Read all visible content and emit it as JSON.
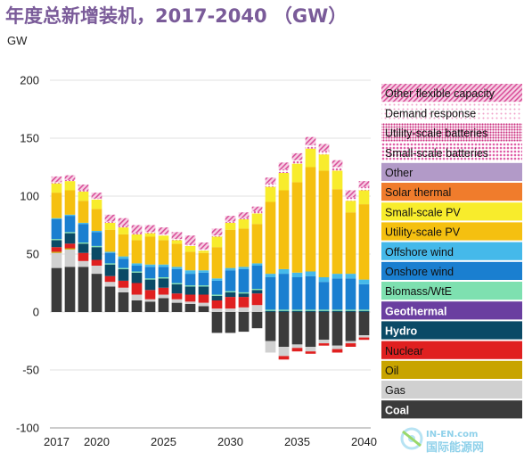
{
  "title": "年度总新增装机，2017-2040 （GW）",
  "watermark": {
    "text": "国际能源网",
    "domain": "IN-EN.com"
  },
  "chart_data": {
    "type": "bar",
    "stacked": true,
    "ylabel": "GW",
    "ylim": [
      -100,
      200
    ],
    "yticks": [
      -100,
      -50,
      0,
      50,
      100,
      150,
      200
    ],
    "x": [
      2017,
      2018,
      2019,
      2020,
      2021,
      2022,
      2023,
      2024,
      2025,
      2026,
      2027,
      2028,
      2029,
      2030,
      2031,
      2032,
      2033,
      2034,
      2035,
      2036,
      2037,
      2038,
      2039,
      2040
    ],
    "xtick_labels": [
      "2017",
      "2020",
      "2025",
      "2030",
      "2035",
      "2040"
    ],
    "grid": true,
    "legend_position": "right",
    "series": [
      {
        "name": "Coal",
        "color": "#3b3b3b",
        "values": [
          38,
          39,
          39,
          33,
          22,
          17,
          10,
          9,
          12,
          8,
          7,
          5,
          -18,
          -18,
          -17,
          -14,
          -25,
          -30,
          -28,
          -30,
          -24,
          -29,
          -25,
          -20
        ]
      },
      {
        "name": "Gas",
        "color": "#d0d0d0",
        "values": [
          13,
          15,
          5,
          7,
          4,
          4,
          5,
          2,
          3,
          3,
          2,
          3,
          3,
          3,
          4,
          6,
          -10,
          -8,
          -3,
          -4,
          -3,
          -3,
          -2,
          -2
        ]
      },
      {
        "name": "Oil",
        "color": "#c8a400",
        "values": [
          1,
          1,
          0,
          0,
          0,
          0,
          0,
          0,
          0,
          0,
          0,
          0,
          0,
          0,
          0,
          0,
          0,
          0,
          0,
          0,
          0,
          0,
          0,
          0
        ]
      },
      {
        "name": "Nuclear",
        "color": "#e02020",
        "values": [
          4,
          4,
          7,
          5,
          5,
          6,
          10,
          8,
          6,
          5,
          6,
          7,
          7,
          10,
          9,
          10,
          0,
          -3,
          -3,
          -2,
          -2,
          -3,
          -3,
          -2
        ]
      },
      {
        "name": "Hydro",
        "color": "#0b4a66",
        "values": [
          6,
          9,
          8,
          11,
          10,
          10,
          9,
          9,
          8,
          8,
          7,
          7,
          4,
          4,
          3,
          3,
          1,
          1,
          1,
          1,
          1,
          1,
          1,
          1
        ]
      },
      {
        "name": "Geothermal",
        "color": "#6a3fa0",
        "values": [
          0,
          0,
          0,
          0,
          0,
          0,
          0,
          0,
          0,
          0,
          0,
          0,
          0,
          0,
          0,
          0,
          0,
          0,
          0,
          0,
          0,
          0,
          0,
          0
        ]
      },
      {
        "name": "Biomass/WtE",
        "color": "#7ee0b0",
        "values": [
          1,
          1,
          1,
          1,
          1,
          1,
          1,
          1,
          1,
          1,
          1,
          1,
          1,
          1,
          1,
          1,
          1,
          1,
          1,
          1,
          1,
          1,
          1,
          1
        ]
      },
      {
        "name": "Onshore wind",
        "color": "#1a7fd0",
        "values": [
          17,
          14,
          16,
          12,
          9,
          8,
          5,
          10,
          9,
          12,
          10,
          11,
          12,
          18,
          20,
          20,
          28,
          31,
          28,
          29,
          24,
          27,
          27,
          22
        ]
      },
      {
        "name": "Offshore wind",
        "color": "#45b9ea",
        "values": [
          1,
          1,
          1,
          1,
          1,
          2,
          2,
          2,
          2,
          2,
          3,
          2,
          2,
          2,
          2,
          2,
          3,
          4,
          4,
          4,
          4,
          4,
          4,
          4
        ]
      },
      {
        "name": "Utility-scale PV",
        "color": "#f5c010",
        "values": [
          22,
          21,
          19,
          19,
          19,
          19,
          20,
          24,
          21,
          20,
          16,
          15,
          27,
          33,
          33,
          34,
          62,
          68,
          78,
          90,
          92,
          73,
          53,
          65
        ]
      },
      {
        "name": "Small-scale PV",
        "color": "#f8ec2c",
        "values": [
          8,
          8,
          8,
          8,
          6,
          6,
          5,
          3,
          4,
          3,
          5,
          2,
          9,
          6,
          8,
          9,
          13,
          15,
          16,
          16,
          14,
          16,
          10,
          12
        ]
      },
      {
        "name": "Solar thermal",
        "color": "#f07c2c",
        "values": [
          0,
          0,
          0,
          0,
          0,
          0,
          0,
          0,
          0,
          0,
          0,
          0,
          0,
          0,
          0,
          0,
          0,
          0,
          0,
          0,
          0,
          0,
          0,
          0
        ]
      },
      {
        "name": "Other",
        "color": "#b29ac8",
        "values": [
          0,
          0,
          0,
          0,
          0,
          0,
          0,
          0,
          0,
          0,
          0,
          0,
          0,
          0,
          0,
          0,
          0,
          0,
          0,
          0,
          0,
          0,
          0,
          0
        ]
      },
      {
        "name": "Small-scale batteries",
        "color": "#e060a8",
        "pattern": "dots",
        "values": [
          1,
          1,
          1,
          1,
          1,
          1,
          1,
          1,
          1,
          1,
          1,
          1,
          1,
          1,
          1,
          2,
          3,
          3,
          3,
          3,
          3,
          3,
          3,
          3
        ]
      },
      {
        "name": "Utility-scale batteries",
        "color": "#cc3080",
        "pattern": "dense",
        "values": [
          0,
          0,
          0,
          0,
          0,
          0,
          0,
          0,
          0,
          0,
          0,
          0,
          0,
          0,
          0,
          0,
          0,
          0,
          0,
          0,
          0,
          0,
          0,
          0
        ]
      },
      {
        "name": "Demand response",
        "color": "#f0a0c8",
        "pattern": "light",
        "values": [
          0,
          0,
          0,
          0,
          0,
          0,
          0,
          0,
          0,
          0,
          0,
          0,
          0,
          0,
          0,
          0,
          0,
          0,
          0,
          0,
          0,
          0,
          0,
          0
        ]
      },
      {
        "name": "Other flexible capacity",
        "color": "#d9509a",
        "pattern": "hatch",
        "values": [
          5,
          4,
          5,
          5,
          6,
          7,
          7,
          6,
          6,
          6,
          8,
          6,
          6,
          5,
          5,
          4,
          5,
          6,
          6,
          7,
          6,
          6,
          6,
          5
        ]
      }
    ]
  }
}
